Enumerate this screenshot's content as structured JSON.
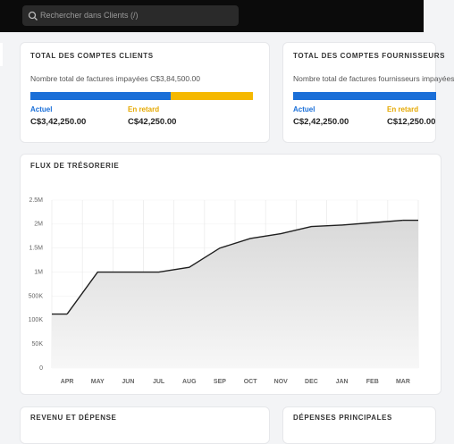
{
  "search": {
    "placeholder": "Rechercher dans Clients (/)"
  },
  "cards": [
    {
      "title": "TOTAL DES COMPTES CLIENTS",
      "subtitle": "Nombre total de factures impayées C$3,84,500.00",
      "current_label": "Actuel",
      "current_value": "C$3,42,250.00",
      "late_label": "En retard",
      "late_value": "C$42,250.00"
    },
    {
      "title": "TOTAL DES COMPTES FOURNISSEURS",
      "subtitle": "Nombre total de factures fournisseurs impayées",
      "current_label": "Actuel",
      "current_value": "C$2,42,250.00",
      "late_label": "En retard",
      "late_value": "C$12,250.00"
    }
  ],
  "chart_data": {
    "type": "line",
    "title": "FLUX DE TRÉSORERIE",
    "categories": [
      "APR",
      "MAY",
      "JUN",
      "JUL",
      "AUG",
      "SEP",
      "OCT",
      "NOV",
      "DEC",
      "JAN",
      "FEB",
      "MAR"
    ],
    "values": [
      200000,
      1000000,
      1000000,
      1000000,
      1100000,
      1500000,
      1700000,
      1800000,
      1950000,
      1980000,
      2030000,
      2080000
    ],
    "color": "#1f1f1f",
    "ylim": [
      0,
      2500000
    ],
    "yticks": [
      0,
      {
        "value": 50000,
        "label": "50K"
      },
      {
        "value": 100000,
        "label": "100K"
      },
      {
        "value": 500000,
        "label": "500K"
      },
      {
        "value": 1000000,
        "label": "1M"
      },
      {
        "value": 1500000,
        "label": "1.5M"
      },
      {
        "value": 2000000,
        "label": "2M"
      },
      {
        "value": 2500000,
        "label": "2.5M"
      }
    ],
    "grid": true
  },
  "bottom_cards": [
    "REVENU ET DÉPENSE",
    "DÉPENSES PRINCIPALES"
  ]
}
